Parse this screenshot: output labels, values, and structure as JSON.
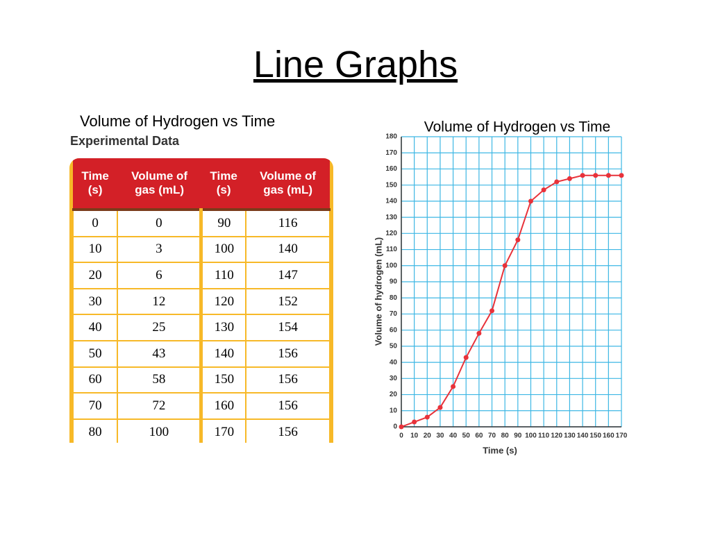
{
  "title": "Line Graphs",
  "table_caption": "Volume of Hydrogen vs Time",
  "table": {
    "label": "Experimental Data",
    "header": [
      "Time (s)",
      "Volume of gas (mL)",
      "Time (s)",
      "Volume of gas (mL)"
    ],
    "rows": [
      [
        "0",
        "0",
        "90",
        "116"
      ],
      [
        "10",
        "3",
        "100",
        "140"
      ],
      [
        "20",
        "6",
        "110",
        "147"
      ],
      [
        "30",
        "12",
        "120",
        "152"
      ],
      [
        "40",
        "25",
        "130",
        "154"
      ],
      [
        "50",
        "43",
        "140",
        "156"
      ],
      [
        "60",
        "58",
        "150",
        "156"
      ],
      [
        "70",
        "72",
        "160",
        "156"
      ],
      [
        "80",
        "100",
        "170",
        "156"
      ]
    ]
  },
  "chart_data": {
    "type": "line",
    "title": "Volume of Hydrogen vs Time",
    "x_label": "Time (s)",
    "y_label": "Volume of hydrogen (mL)",
    "x": [
      0,
      10,
      20,
      30,
      40,
      50,
      60,
      70,
      80,
      90,
      100,
      110,
      120,
      130,
      140,
      150,
      160,
      170
    ],
    "series": [
      {
        "name": "Volume of hydrogen",
        "color": "#e8323a",
        "values": [
          0,
          3,
          6,
          12,
          25,
          43,
          58,
          72,
          100,
          116,
          140,
          147,
          152,
          154,
          156,
          156,
          156,
          156
        ]
      }
    ],
    "xlim": [
      0,
      170
    ],
    "xticks": [
      0,
      10,
      20,
      30,
      40,
      50,
      60,
      70,
      80,
      90,
      100,
      110,
      120,
      130,
      140,
      150,
      160,
      170
    ],
    "ylim": [
      0,
      180
    ],
    "yticks": [
      0,
      10,
      20,
      30,
      40,
      50,
      60,
      70,
      80,
      90,
      100,
      110,
      120,
      130,
      140,
      150,
      160,
      170,
      180
    ],
    "grid": true,
    "grid_color": "#3db7e4"
  }
}
